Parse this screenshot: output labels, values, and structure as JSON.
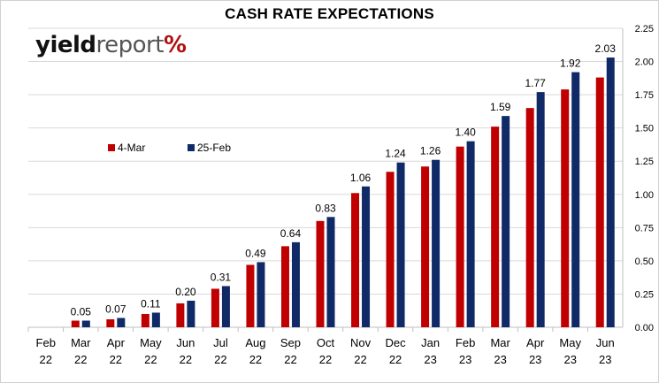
{
  "title": "CASH RATE EXPECTATIONS",
  "logo": {
    "part1": "yield",
    "part2": "report",
    "symbol": "%"
  },
  "colors": {
    "series1": "#c00000",
    "series2": "#0f2a66",
    "grid": "#d9d9d9",
    "axis": "#bfbfbf"
  },
  "chart_data": {
    "type": "bar",
    "title": "CASH RATE EXPECTATIONS",
    "categories": [
      [
        "Feb",
        "22"
      ],
      [
        "Mar",
        "22"
      ],
      [
        "Apr",
        "22"
      ],
      [
        "May",
        "22"
      ],
      [
        "Jun",
        "22"
      ],
      [
        "Jul",
        "22"
      ],
      [
        "Aug",
        "22"
      ],
      [
        "Sep",
        "22"
      ],
      [
        "Oct",
        "22"
      ],
      [
        "Nov",
        "22"
      ],
      [
        "Dec",
        "22"
      ],
      [
        "Jan",
        "23"
      ],
      [
        "Feb",
        "23"
      ],
      [
        "Mar",
        "23"
      ],
      [
        "Apr",
        "23"
      ],
      [
        "May",
        "23"
      ],
      [
        "Jun",
        "23"
      ]
    ],
    "series": [
      {
        "name": "4-Mar",
        "color": "#c00000",
        "values": [
          0.0,
          0.05,
          0.06,
          0.1,
          0.18,
          0.29,
          0.47,
          0.61,
          0.8,
          1.01,
          1.17,
          1.21,
          1.36,
          1.51,
          1.65,
          1.79,
          1.88
        ]
      },
      {
        "name": "25-Feb",
        "color": "#0f2a66",
        "values": [
          0.0,
          0.05,
          0.07,
          0.11,
          0.2,
          0.31,
          0.49,
          0.64,
          0.83,
          1.06,
          1.24,
          1.26,
          1.4,
          1.59,
          1.77,
          1.92,
          2.03
        ]
      }
    ],
    "data_labels": [
      "",
      "0.05",
      "0.07",
      "0.11",
      "0.20",
      "0.31",
      "0.49",
      "0.64",
      "0.83",
      "1.06",
      "1.24",
      "1.26",
      "1.40",
      "1.59",
      "1.77",
      "1.92",
      "2.03"
    ],
    "yticks": [
      "0.00",
      "0.25",
      "0.50",
      "0.75",
      "1.00",
      "1.25",
      "1.50",
      "1.75",
      "2.00",
      "2.25"
    ],
    "ylim": [
      0,
      2.25
    ],
    "yaxis_side": "right",
    "grid": true,
    "legend_position": "upper-left"
  }
}
